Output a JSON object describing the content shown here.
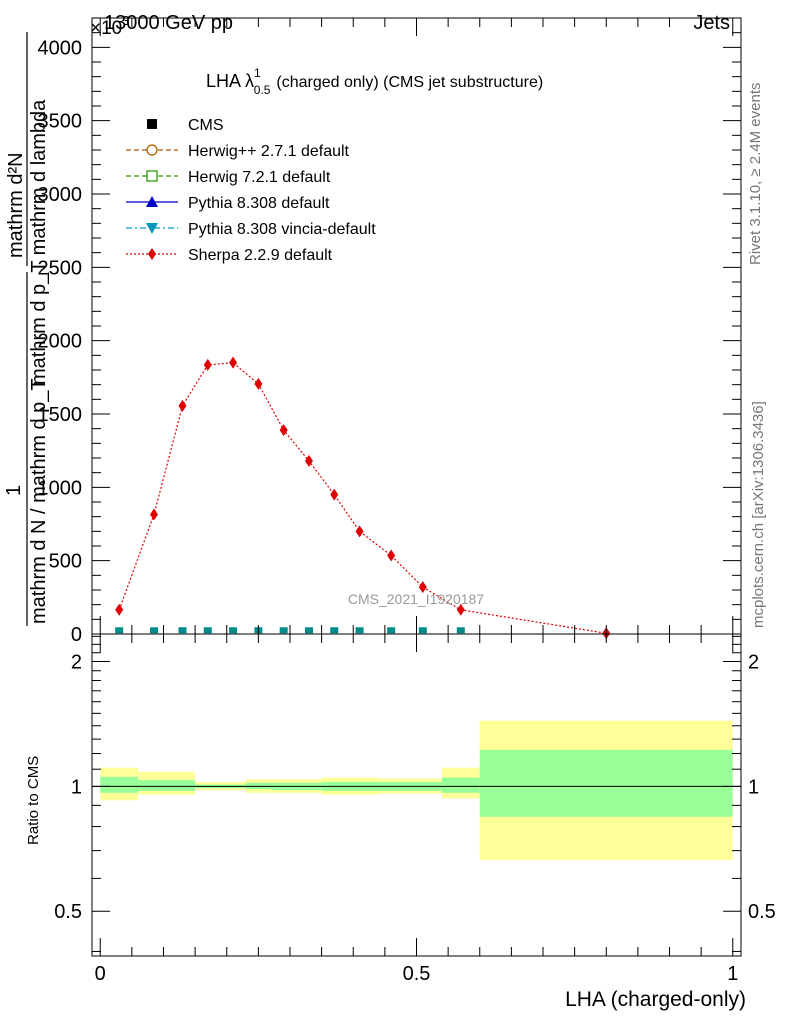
{
  "header": {
    "energy": "13000 GeV pp",
    "process": "Jets",
    "exponent": "×10",
    "exponent_power": "3"
  },
  "side_labels": {
    "rivet": "Rivet 3.1.10, ≥ 2.4M events",
    "mcplots": "mcplots.cern.ch [arXiv:1306.3436]"
  },
  "watermark": "CMS_2021_I1920187",
  "main_ylabel": {
    "top_numerator": "mathrm d²N",
    "top_denominator": "mathrm d p_T mathrm d lambda",
    "prefix": "1",
    "prefix_den": "mathrm d N / mathrm d p_T"
  },
  "ratio_ylabel": "Ratio to CMS",
  "xlabel": "LHA (charged-only)",
  "chart_data": [
    {
      "type": "line",
      "title": "LHA λ¹₀.₅ (charged only) (CMS jet substructure)",
      "title_main": "LHA λ",
      "title_sup": "1",
      "title_sub": "0.5",
      "title_rest": "(charged only) (CMS jet substructure)",
      "xlim": [
        -0.013,
        1.013
      ],
      "ylim": [
        0,
        4.2
      ],
      "y_scale_note": "×10^3",
      "yticks": [
        0,
        0.5,
        1,
        1.5,
        2,
        2.5,
        3,
        3.5,
        4
      ],
      "ytick_labels": [
        "0",
        "500",
        "1000",
        "1500",
        "2000",
        "2500",
        "3000",
        "3500",
        "4000"
      ],
      "legend": [
        {
          "name": "CMS",
          "color": "#000000",
          "marker": "square-filled",
          "line": "none"
        },
        {
          "name": "Herwig++ 2.7.1 default",
          "color": "#b35900",
          "marker": "circle-open",
          "line": "dashed"
        },
        {
          "name": "Herwig 7.2.1 default",
          "color": "#2e9e00",
          "marker": "square-open",
          "line": "dashed"
        },
        {
          "name": "Pythia 8.308 default",
          "color": "#0000cc",
          "marker": "triangle-filled",
          "line": "solid"
        },
        {
          "name": "Pythia 8.308 vincia-default",
          "color": "#0099bb",
          "marker": "triangle-down-filled",
          "line": "dashdot"
        },
        {
          "name": "Sherpa 2.2.9 default",
          "color": "#e00000",
          "marker": "diamond-filled",
          "line": "dotted"
        }
      ],
      "x": [
        0.03,
        0.085,
        0.13,
        0.17,
        0.21,
        0.25,
        0.29,
        0.33,
        0.37,
        0.41,
        0.46,
        0.51,
        0.57,
        0.8
      ],
      "series": [
        {
          "name": "Sherpa 2.2.9 default",
          "color": "#e00000",
          "values": [
            0.165,
            0.815,
            1.555,
            1.835,
            1.85,
            1.705,
            1.39,
            1.18,
            0.95,
            0.7,
            0.535,
            0.32,
            0.165,
            0.005
          ]
        },
        {
          "name": "CMS",
          "color": "#008b8b",
          "values": [
            0.005,
            0.005,
            0.005,
            0.005,
            0.005,
            0.005,
            0.005,
            0.005,
            0.005,
            0.005,
            0.005,
            0.005,
            0.005,
            0.005
          ]
        }
      ]
    },
    {
      "type": "area",
      "ylabel": "Ratio to CMS",
      "xlabel": "LHA (charged-only)",
      "xlim": [
        -0.013,
        1.013
      ],
      "ylim": [
        0.39,
        2.33
      ],
      "y_scale": "log",
      "yticks": [
        0.5,
        1,
        2
      ],
      "ytick_labels": [
        "0.5",
        "1",
        "2"
      ],
      "xticks": [
        0,
        0.5,
        1
      ],
      "xtick_labels": [
        "0",
        "0.5",
        "1"
      ],
      "reference_line": 1,
      "bins": [
        {
          "lo": 0.0,
          "hi": 0.06,
          "inner": [
            0.965,
            1.055
          ],
          "outer": [
            0.925,
            1.11
          ]
        },
        {
          "lo": 0.06,
          "hi": 0.15,
          "inner": [
            0.975,
            1.035
          ],
          "outer": [
            0.955,
            1.085
          ]
        },
        {
          "lo": 0.15,
          "hi": 0.23,
          "inner": [
            0.99,
            1.01
          ],
          "outer": [
            0.98,
            1.025
          ]
        },
        {
          "lo": 0.23,
          "hi": 0.27,
          "inner": [
            0.985,
            1.02
          ],
          "outer": [
            0.965,
            1.04
          ]
        },
        {
          "lo": 0.27,
          "hi": 0.35,
          "inner": [
            0.98,
            1.02
          ],
          "outer": [
            0.965,
            1.04
          ]
        },
        {
          "lo": 0.35,
          "hi": 0.44,
          "inner": [
            0.975,
            1.025
          ],
          "outer": [
            0.955,
            1.05
          ]
        },
        {
          "lo": 0.44,
          "hi": 0.54,
          "inner": [
            0.975,
            1.025
          ],
          "outer": [
            0.96,
            1.045
          ]
        },
        {
          "lo": 0.54,
          "hi": 0.6,
          "inner": [
            0.965,
            1.05
          ],
          "outer": [
            0.935,
            1.11
          ]
        },
        {
          "lo": 0.6,
          "hi": 1.0,
          "inner": [
            0.845,
            1.225
          ],
          "outer": [
            0.665,
            1.44
          ]
        }
      ],
      "colors": {
        "inner": "#99ff99",
        "outer": "#ffff99"
      }
    }
  ]
}
